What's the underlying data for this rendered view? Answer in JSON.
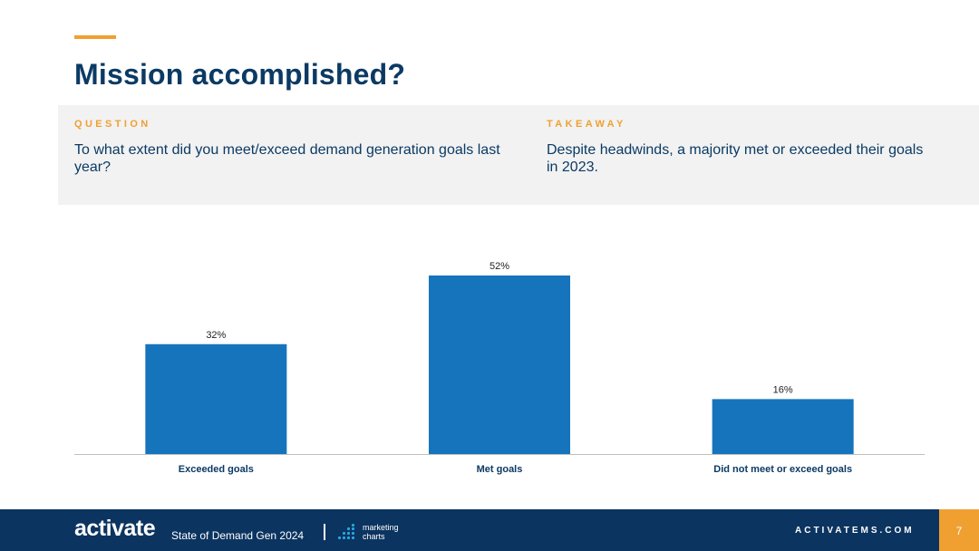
{
  "slide": {
    "title": "Mission accomplished?",
    "question_label": "QUESTION",
    "question_text": "To what extent did you meet/exceed demand generation goals last year?",
    "takeaway_label": "TAKEAWAY",
    "takeaway_text": "Despite headwinds, a majority met or exceeded their goals in 2023."
  },
  "chart_data": {
    "type": "bar",
    "categories": [
      "Exceeded goals",
      "Met goals",
      "Did not meet or exceed goals"
    ],
    "values": [
      32,
      52,
      16
    ],
    "value_labels": [
      "32%",
      "52%",
      "16%"
    ],
    "unit": "%",
    "ylim": [
      0,
      52
    ],
    "grid": false,
    "bar_color": "#1674bd"
  },
  "footer": {
    "brand": "activate",
    "report_name": "State of Demand Gen 2024",
    "partner": "marketing charts",
    "site": "ACTIVATEMS.COM",
    "page_number": "7"
  },
  "colors": {
    "navy": "#0b3a64",
    "accent": "#f0a030",
    "footer_bg": "#0c3460",
    "band_bg": "#f2f2f2"
  }
}
